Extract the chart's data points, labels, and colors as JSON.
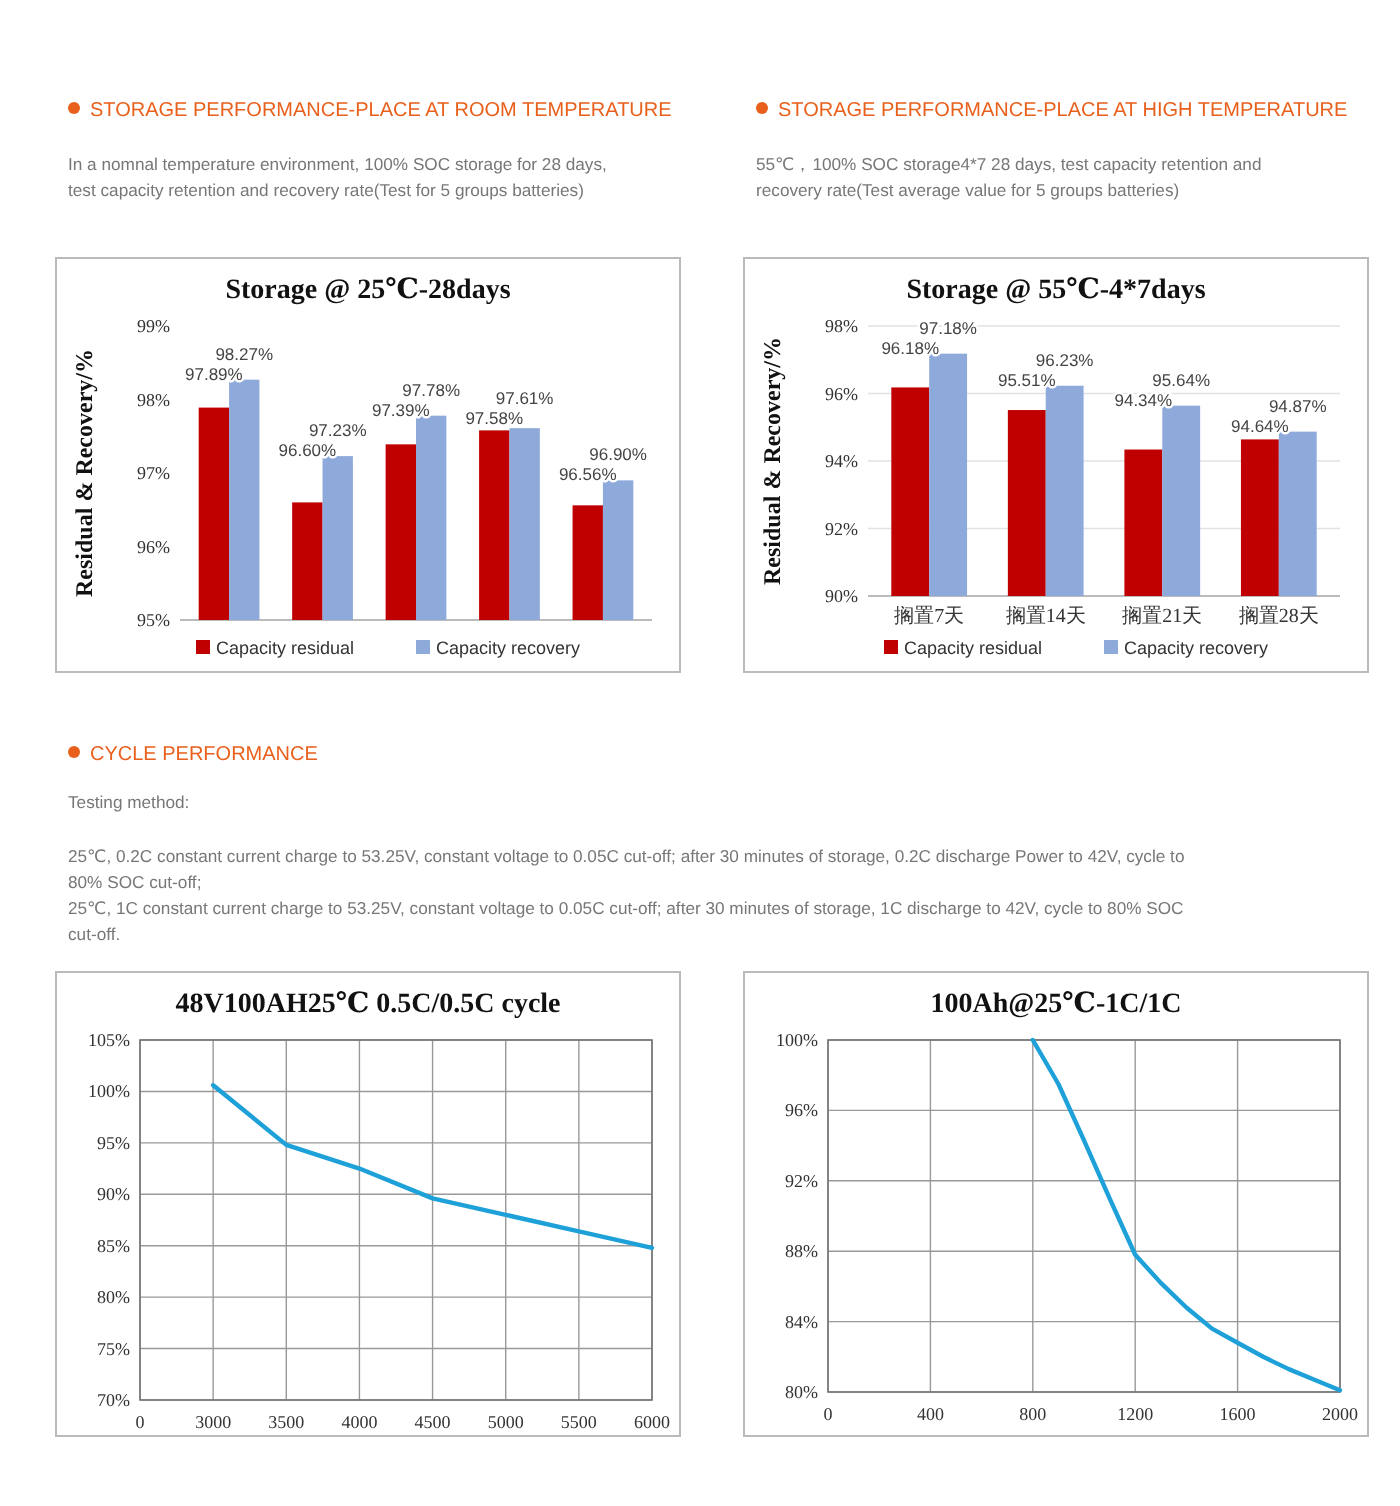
{
  "chart_data": [
    {
      "type": "bar",
      "title": "Storage @ 25℃-28days",
      "ylabel": "Residual & Recovery/%",
      "annotations": [
        "STORAGE PERFORMANCE-PLACE AT ROOM TEMPERATURE",
        "In a nomnal temperature environment, 100% SOC storage for 28 days,",
        "test capacity retention and recovery rate(Test for 5 groups batteries)"
      ],
      "categories": [
        null,
        null,
        null,
        null,
        null
      ],
      "series": [
        {
          "name": "Capacity residual",
          "color": "#c00000",
          "values": [
            97.89,
            96.6,
            97.39,
            97.58,
            96.56
          ],
          "value_labels": [
            "97.89%",
            "96.60%",
            "97.39%",
            "97.58%",
            "96.56%"
          ]
        },
        {
          "name": "Capacity recovery",
          "color": "#8eaadb",
          "values": [
            98.27,
            97.23,
            97.78,
            97.61,
            96.9
          ],
          "value_labels": [
            "98.27%",
            "97.23%",
            "97.78%",
            "97.61%",
            "96.90%"
          ]
        }
      ],
      "ylim": [
        95,
        99
      ],
      "yticks": [
        {
          "value": 95,
          "label": "95%"
        },
        {
          "value": 96,
          "label": "96%"
        },
        {
          "value": 97,
          "label": "97%"
        },
        {
          "value": 98,
          "label": "98%"
        },
        {
          "value": 99,
          "label": "99%"
        }
      ],
      "legend": "bottom"
    },
    {
      "type": "bar",
      "title": "Storage @ 55℃-4*7days",
      "ylabel": "Residual & Recovery/%",
      "annotations": [
        "STORAGE PERFORMANCE-PLACE AT HIGH TEMPERATURE",
        "55℃，100% SOC storage4*7 28 days, test capacity retention and",
        "recovery rate(Test average value for 5 groups batteries)"
      ],
      "categories": [
        "搁置7天",
        "搁置14天",
        "搁置21天",
        "搁置28天"
      ],
      "series": [
        {
          "name": "Capacity residual",
          "color": "#c00000",
          "values": [
            96.18,
            95.51,
            94.34,
            94.64
          ],
          "value_labels": [
            "96.18%",
            "95.51%",
            "94.34%",
            "94.64%"
          ]
        },
        {
          "name": "Capacity recovery",
          "color": "#8eaadb",
          "values": [
            97.18,
            96.23,
            95.64,
            94.87
          ],
          "value_labels": [
            "97.18%",
            "96.23%",
            "95.64%",
            "94.87%"
          ]
        }
      ],
      "ylim": [
        90,
        98
      ],
      "yticks": [
        {
          "value": 90,
          "label": "90%"
        },
        {
          "value": 92,
          "label": "92%"
        },
        {
          "value": 94,
          "label": "94%"
        },
        {
          "value": 96,
          "label": "96%"
        },
        {
          "value": 98,
          "label": "98%"
        }
      ],
      "grid": "y",
      "legend": "bottom"
    },
    {
      "type": "other",
      "title": "CYCLE PERFORMANCE",
      "annotations": [
        "Testing method:",
        "25℃, 0.2C constant current charge to 53.25V, constant voltage to 0.05C cut-off; after 30 minutes of storage, 0.2C discharge Power to 42V, cycle to",
        "80% SOC cut-off;",
        "25℃, 1C constant current charge to 53.25V, constant voltage to 0.05C cut-off; after 30 minutes of storage, 1C discharge to 42V, cycle to 80% SOC",
        "cut-off."
      ]
    },
    {
      "type": "line",
      "title": "48V100AH25℃ 0.5C/0.5C cycle",
      "categories": [
        "0",
        "3000",
        "3500",
        "4000",
        "4500",
        "5000",
        "5500",
        "6000"
      ],
      "series": [
        {
          "color": "#1ea0d8",
          "values": [
            null,
            100.6,
            94.8,
            92.5,
            89.6,
            88,
            86.4,
            84.8
          ]
        }
      ],
      "ylim": [
        70,
        105
      ],
      "yticks": [
        {
          "value": 70,
          "label": "70%"
        },
        {
          "value": 75,
          "label": "75%"
        },
        {
          "value": 80,
          "label": "80%"
        },
        {
          "value": 85,
          "label": "85%"
        },
        {
          "value": 90,
          "label": "90%"
        },
        {
          "value": 95,
          "label": "95%"
        },
        {
          "value": 100,
          "label": "100%"
        },
        {
          "value": 105,
          "label": "105%"
        }
      ],
      "grid": true
    },
    {
      "type": "line",
      "title": "100Ah@25℃-1C/1C",
      "series": [
        {
          "color": "#1ea0d8",
          "x": [
            800,
            900,
            1000,
            1100,
            1200,
            1300,
            1400,
            1500,
            1600,
            1700,
            1800,
            1900,
            2000
          ],
          "values": [
            100,
            97.5,
            94.3,
            91,
            87.8,
            86.2,
            84.8,
            83.6,
            82.8,
            82,
            81.3,
            80.7,
            80.1
          ]
        }
      ],
      "xlim": [
        0,
        2000
      ],
      "xticks": [
        0,
        400,
        800,
        1200,
        1600,
        2000
      ],
      "ylim": [
        80,
        100
      ],
      "yticks": [
        {
          "value": 80,
          "label": "80%"
        },
        {
          "value": 84,
          "label": "84%"
        },
        {
          "value": 88,
          "label": "88%"
        },
        {
          "value": 92,
          "label": "92%"
        },
        {
          "value": 96,
          "label": "96%"
        },
        {
          "value": 100,
          "label": "100%"
        }
      ],
      "grid": true
    }
  ]
}
